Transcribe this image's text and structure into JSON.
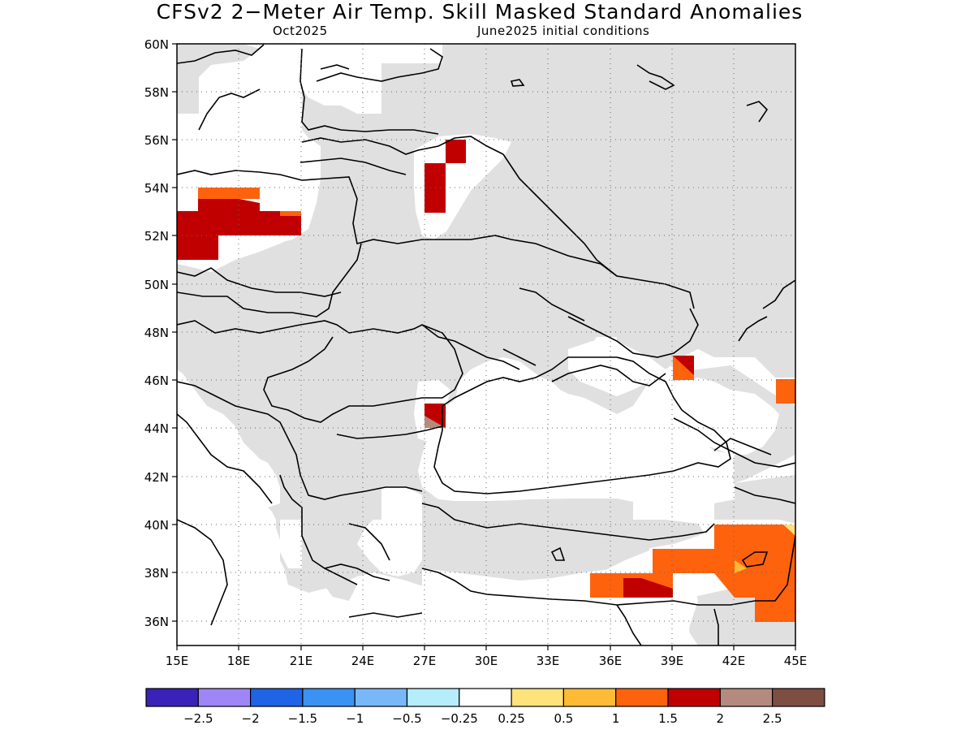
{
  "title": "CFSv2 2−Meter Air Temp. Skill Masked Standard Anomalies",
  "valid_month": "Oct2025",
  "init_conditions": "June2025 initial conditions",
  "map": {
    "lat_labels": [
      "60N",
      "58N",
      "56N",
      "54N",
      "52N",
      "50N",
      "48N",
      "46N",
      "44N",
      "42N",
      "40N",
      "38N",
      "36N"
    ],
    "lon_labels": [
      "15E",
      "18E",
      "21E",
      "24E",
      "27E",
      "30E",
      "33E",
      "36E",
      "39E",
      "42E",
      "45E"
    ],
    "no_skill_color": "#e0e0e0",
    "border_color": "#000000"
  },
  "legend": {
    "colors": [
      "#3a22b8",
      "#9f86f7",
      "#1f64e6",
      "#3a92f3",
      "#78b8f8",
      "#b5edfb",
      "#ffffff",
      "#ffe27a",
      "#ffbb35",
      "#ff620d",
      "#c00000",
      "#b58a7e",
      "#7e4e42"
    ],
    "labels": [
      "−2.5",
      "−2",
      "−1.5",
      "−1",
      "−0.5",
      "−0.25",
      "0.25",
      "0.5",
      "1",
      "1.5",
      "2",
      "2.5"
    ]
  }
}
